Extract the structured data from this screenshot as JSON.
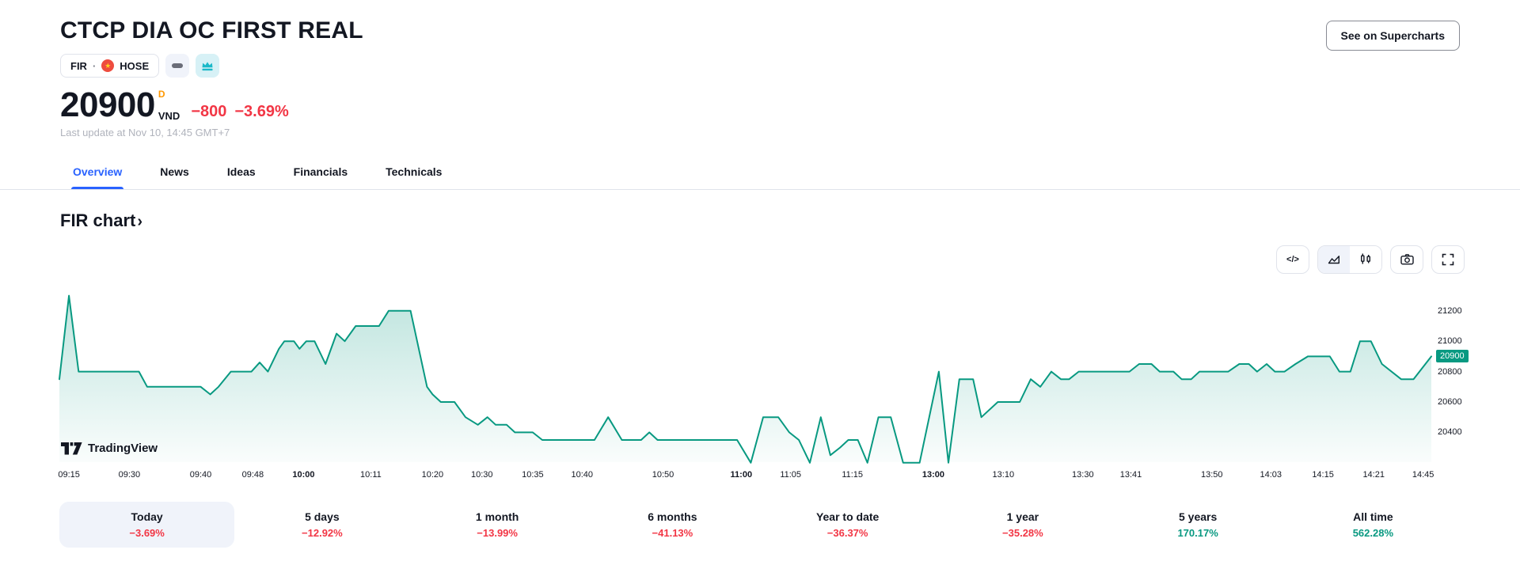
{
  "header": {
    "title": "CTCP DIA OC FIRST REAL",
    "symbol": "FIR",
    "separator": "·",
    "exchange": "HOSE",
    "flag": "vietnam-flag",
    "price": "20900",
    "market_marker": "D",
    "currency": "VND",
    "change": "−800",
    "change_pct": "−3.69%",
    "last_update": "Last update at Nov 10, 14:45 GMT+7",
    "supercharts_button": "See on Supercharts"
  },
  "tabs": [
    {
      "label": "Overview",
      "active": true
    },
    {
      "label": "News",
      "active": false
    },
    {
      "label": "Ideas",
      "active": false
    },
    {
      "label": "Financials",
      "active": false
    },
    {
      "label": "Technicals",
      "active": false
    }
  ],
  "section": {
    "heading": "FIR chart",
    "chevron": "›"
  },
  "toolbar": {
    "code_label": "</>",
    "icons": [
      "code",
      "area-chart",
      "candlestick-chart",
      "camera-snapshot",
      "fullscreen"
    ]
  },
  "attribution": "TradingView",
  "periods": [
    {
      "label": "Today",
      "value": "−3.69%",
      "direction": "down",
      "selected": true
    },
    {
      "label": "5 days",
      "value": "−12.92%",
      "direction": "down",
      "selected": false
    },
    {
      "label": "1 month",
      "value": "−13.99%",
      "direction": "down",
      "selected": false
    },
    {
      "label": "6 months",
      "value": "−41.13%",
      "direction": "down",
      "selected": false
    },
    {
      "label": "Year to date",
      "value": "−36.37%",
      "direction": "down",
      "selected": false
    },
    {
      "label": "1 year",
      "value": "−35.28%",
      "direction": "down",
      "selected": false
    },
    {
      "label": "5 years",
      "value": "170.17%",
      "direction": "up",
      "selected": false
    },
    {
      "label": "All time",
      "value": "562.28%",
      "direction": "up",
      "selected": false
    }
  ],
  "colors": {
    "accent_blue": "#2962ff",
    "negative_red": "#f23645",
    "positive_green": "#089981",
    "delayed_orange": "#ff9800",
    "text_dark": "#131722",
    "border_gray": "#e0e3eb",
    "selected_chip": "#f0f3fa"
  },
  "chart_data": {
    "type": "area",
    "title": "FIR intraday price, VND",
    "grid": false,
    "legend": false,
    "line_color": "#089981",
    "y_axis": {
      "side": "right",
      "range": [
        20204,
        21350
      ],
      "ticks": [
        21200,
        21000,
        20800,
        20600,
        20400
      ],
      "last_price": 20900
    },
    "x_axis": {
      "labels": [
        {
          "t": 0.007,
          "label": "09:15",
          "bold": false
        },
        {
          "t": 0.051,
          "label": "09:30",
          "bold": false
        },
        {
          "t": 0.103,
          "label": "09:40",
          "bold": false
        },
        {
          "t": 0.141,
          "label": "09:48",
          "bold": false
        },
        {
          "t": 0.178,
          "label": "10:00",
          "bold": true
        },
        {
          "t": 0.227,
          "label": "10:11",
          "bold": false
        },
        {
          "t": 0.272,
          "label": "10:20",
          "bold": false
        },
        {
          "t": 0.308,
          "label": "10:30",
          "bold": false
        },
        {
          "t": 0.345,
          "label": "10:35",
          "bold": false
        },
        {
          "t": 0.381,
          "label": "10:40",
          "bold": false
        },
        {
          "t": 0.44,
          "label": "10:50",
          "bold": false
        },
        {
          "t": 0.497,
          "label": "11:00",
          "bold": true
        },
        {
          "t": 0.533,
          "label": "11:05",
          "bold": false
        },
        {
          "t": 0.578,
          "label": "11:15",
          "bold": false
        },
        {
          "t": 0.637,
          "label": "13:00",
          "bold": true
        },
        {
          "t": 0.688,
          "label": "13:10",
          "bold": false
        },
        {
          "t": 0.746,
          "label": "13:30",
          "bold": false
        },
        {
          "t": 0.781,
          "label": "13:41",
          "bold": false
        },
        {
          "t": 0.84,
          "label": "13:50",
          "bold": false
        },
        {
          "t": 0.883,
          "label": "14:03",
          "bold": false
        },
        {
          "t": 0.921,
          "label": "14:15",
          "bold": false
        },
        {
          "t": 0.958,
          "label": "14:21",
          "bold": false
        },
        {
          "t": 0.994,
          "label": "14:45",
          "bold": false
        }
      ]
    },
    "series": [
      {
        "name": "FIR",
        "points": [
          [
            0.0,
            20750
          ],
          [
            0.007,
            21300
          ],
          [
            0.014,
            20800
          ],
          [
            0.058,
            20800
          ],
          [
            0.064,
            20700
          ],
          [
            0.103,
            20700
          ],
          [
            0.11,
            20650
          ],
          [
            0.116,
            20700
          ],
          [
            0.125,
            20800
          ],
          [
            0.14,
            20800
          ],
          [
            0.146,
            20860
          ],
          [
            0.152,
            20800
          ],
          [
            0.16,
            20950
          ],
          [
            0.164,
            21000
          ],
          [
            0.171,
            21000
          ],
          [
            0.175,
            20950
          ],
          [
            0.18,
            21000
          ],
          [
            0.186,
            21000
          ],
          [
            0.194,
            20850
          ],
          [
            0.202,
            21050
          ],
          [
            0.208,
            21000
          ],
          [
            0.216,
            21100
          ],
          [
            0.233,
            21100
          ],
          [
            0.24,
            21200
          ],
          [
            0.256,
            21200
          ],
          [
            0.268,
            20700
          ],
          [
            0.272,
            20650
          ],
          [
            0.278,
            20600
          ],
          [
            0.288,
            20600
          ],
          [
            0.296,
            20500
          ],
          [
            0.305,
            20450
          ],
          [
            0.312,
            20500
          ],
          [
            0.318,
            20450
          ],
          [
            0.326,
            20450
          ],
          [
            0.332,
            20400
          ],
          [
            0.345,
            20400
          ],
          [
            0.352,
            20350
          ],
          [
            0.39,
            20350
          ],
          [
            0.4,
            20500
          ],
          [
            0.41,
            20350
          ],
          [
            0.424,
            20350
          ],
          [
            0.43,
            20400
          ],
          [
            0.436,
            20350
          ],
          [
            0.494,
            20350
          ],
          [
            0.504,
            20200
          ],
          [
            0.513,
            20500
          ],
          [
            0.524,
            20500
          ],
          [
            0.532,
            20400
          ],
          [
            0.539,
            20350
          ],
          [
            0.547,
            20200
          ],
          [
            0.555,
            20500
          ],
          [
            0.562,
            20250
          ],
          [
            0.569,
            20300
          ],
          [
            0.575,
            20350
          ],
          [
            0.582,
            20350
          ],
          [
            0.589,
            20200
          ],
          [
            0.597,
            20500
          ],
          [
            0.606,
            20500
          ],
          [
            0.615,
            20200
          ],
          [
            0.627,
            20200
          ],
          [
            0.641,
            20800
          ],
          [
            0.648,
            20200
          ],
          [
            0.656,
            20750
          ],
          [
            0.666,
            20750
          ],
          [
            0.672,
            20500
          ],
          [
            0.684,
            20600
          ],
          [
            0.7,
            20600
          ],
          [
            0.708,
            20750
          ],
          [
            0.715,
            20700
          ],
          [
            0.723,
            20800
          ],
          [
            0.73,
            20750
          ],
          [
            0.736,
            20750
          ],
          [
            0.743,
            20800
          ],
          [
            0.78,
            20800
          ],
          [
            0.787,
            20850
          ],
          [
            0.796,
            20850
          ],
          [
            0.802,
            20800
          ],
          [
            0.812,
            20800
          ],
          [
            0.818,
            20750
          ],
          [
            0.825,
            20750
          ],
          [
            0.831,
            20800
          ],
          [
            0.852,
            20800
          ],
          [
            0.86,
            20850
          ],
          [
            0.867,
            20850
          ],
          [
            0.873,
            20800
          ],
          [
            0.88,
            20850
          ],
          [
            0.886,
            20800
          ],
          [
            0.893,
            20800
          ],
          [
            0.901,
            20850
          ],
          [
            0.91,
            20900
          ],
          [
            0.926,
            20900
          ],
          [
            0.933,
            20800
          ],
          [
            0.941,
            20800
          ],
          [
            0.948,
            21000
          ],
          [
            0.956,
            21000
          ],
          [
            0.964,
            20850
          ],
          [
            0.978,
            20750
          ],
          [
            0.987,
            20750
          ],
          [
            1.0,
            20900
          ]
        ]
      }
    ]
  }
}
